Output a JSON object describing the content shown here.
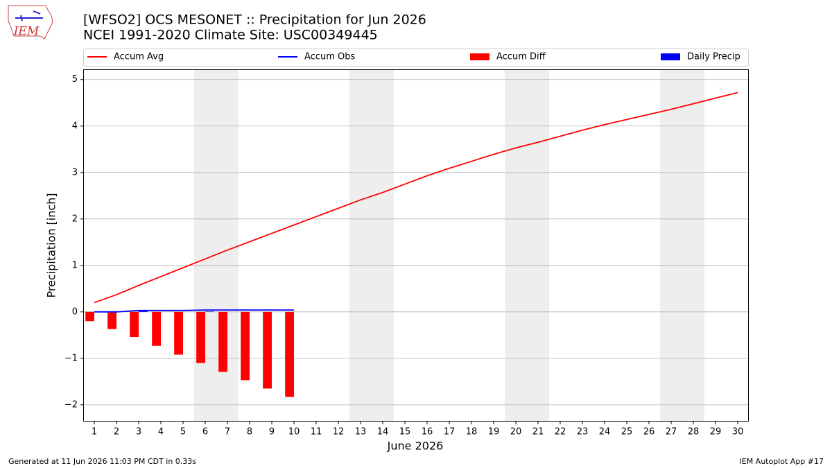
{
  "logo_text": "IEM",
  "footer_left": "Generated at 11 Jun 2026 11:03 PM CDT in 0.33s",
  "footer_right": "IEM Autoplot App #17",
  "chart_data": {
    "type": "combo",
    "title": "[WFSO2] OCS MESONET :: Precipitation for Jun 2026",
    "subtitle": "NCEI 1991-2020 Climate Site: USC00349445",
    "xlabel": "June 2026",
    "ylabel": "Precipitation [inch]",
    "x": [
      1,
      2,
      3,
      4,
      5,
      6,
      7,
      8,
      9,
      10,
      11,
      12,
      13,
      14,
      15,
      16,
      17,
      18,
      19,
      20,
      21,
      22,
      23,
      24,
      25,
      26,
      27,
      28,
      29,
      30
    ],
    "xlim": [
      0.5,
      30.5
    ],
    "xticks": [
      1,
      2,
      3,
      4,
      5,
      6,
      7,
      8,
      9,
      10,
      11,
      12,
      13,
      14,
      15,
      16,
      17,
      18,
      19,
      20,
      21,
      22,
      23,
      24,
      25,
      26,
      27,
      28,
      29,
      30
    ],
    "ylim": [
      -2.36,
      5.22
    ],
    "yticks": [
      {
        "value": -2,
        "label": "−2"
      },
      {
        "value": -1,
        "label": "−1"
      },
      0,
      1,
      2,
      3,
      4,
      5
    ],
    "grid": true,
    "shaded_spans": [
      [
        5.5,
        7.5
      ],
      [
        12.5,
        14.5
      ],
      [
        19.5,
        21.5
      ],
      [
        26.5,
        28.5
      ]
    ],
    "shade_color": "#eeeeee",
    "legend": "top",
    "series": [
      {
        "name": "Accum Avg",
        "type": "line",
        "color": "#ff0000",
        "values": [
          0.2,
          0.37,
          0.57,
          0.76,
          0.95,
          1.14,
          1.33,
          1.51,
          1.69,
          1.87,
          2.05,
          2.23,
          2.41,
          2.57,
          2.75,
          2.93,
          3.09,
          3.24,
          3.39,
          3.53,
          3.65,
          3.78,
          3.91,
          4.03,
          4.14,
          4.25,
          4.36,
          4.48,
          4.6,
          4.72
        ]
      },
      {
        "name": "Accum Obs",
        "type": "line",
        "color": "#0000ff",
        "values": [
          0,
          0,
          0.03,
          0.03,
          0.03,
          0.04,
          0.04,
          0.04,
          0.04,
          0.04,
          null,
          null,
          null,
          null,
          null,
          null,
          null,
          null,
          null,
          null,
          null,
          null,
          null,
          null,
          null,
          null,
          null,
          null,
          null,
          null
        ]
      },
      {
        "name": "Accum Diff",
        "type": "bar",
        "color": "#ff0000",
        "width": 0.4,
        "align": "left",
        "values": [
          -0.2,
          -0.37,
          -0.54,
          -0.73,
          -0.92,
          -1.1,
          -1.29,
          -1.47,
          -1.65,
          -1.83,
          null,
          null,
          null,
          null,
          null,
          null,
          null,
          null,
          null,
          null,
          null,
          null,
          null,
          null,
          null,
          null,
          null,
          null,
          null,
          null
        ]
      },
      {
        "name": "Daily Precip",
        "type": "bar",
        "color": "#0000ff",
        "width": 0.4,
        "align": "right",
        "values": [
          0,
          0,
          0.03,
          0,
          0,
          0.01,
          0,
          0,
          0,
          0,
          null,
          null,
          null,
          null,
          null,
          null,
          null,
          null,
          null,
          null,
          null,
          null,
          null,
          null,
          null,
          null,
          null,
          null,
          null,
          null
        ]
      }
    ]
  }
}
